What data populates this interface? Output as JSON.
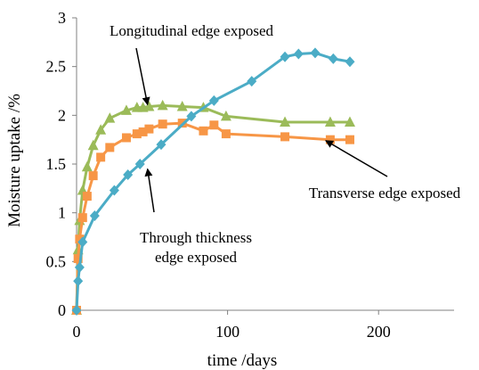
{
  "chart_data": {
    "type": "line",
    "xlabel": "time /days",
    "ylabel": "Moisture uptake /%",
    "xlim": [
      0,
      250
    ],
    "ylim": [
      0,
      3
    ],
    "xticks": [
      0,
      100,
      200
    ],
    "yticks": [
      0,
      0.5,
      1,
      1.5,
      2,
      2.5,
      3
    ],
    "xtick_labels": [
      "0",
      "100",
      "200"
    ],
    "ytick_labels": [
      "0",
      "0.5",
      "1",
      "1.5",
      "2",
      "2.5",
      "3"
    ],
    "grid": false,
    "legend": "none",
    "series": [
      {
        "key": "longitudinal",
        "color": "#9BBB59",
        "marker": "triangle",
        "x": [
          0,
          1,
          2,
          4,
          7,
          11,
          16,
          22,
          33,
          40,
          44,
          48,
          57,
          70,
          84,
          99,
          138,
          168,
          181
        ],
        "y": [
          0,
          0.62,
          0.92,
          1.23,
          1.47,
          1.69,
          1.85,
          1.97,
          2.05,
          2.08,
          2.08,
          2.09,
          2.1,
          2.09,
          2.08,
          1.99,
          1.93,
          1.93,
          1.93
        ]
      },
      {
        "key": "transverse",
        "color": "#F79646",
        "marker": "square",
        "x": [
          0,
          1,
          2,
          4,
          7,
          11,
          16,
          22,
          33,
          40,
          44,
          48,
          57,
          70,
          84,
          91,
          99,
          138,
          168,
          181
        ],
        "y": [
          0,
          0.53,
          0.73,
          0.95,
          1.17,
          1.38,
          1.57,
          1.67,
          1.77,
          1.81,
          1.83,
          1.86,
          1.91,
          1.92,
          1.84,
          1.9,
          1.81,
          1.78,
          1.75,
          1.75
        ]
      },
      {
        "key": "through_thickness",
        "color": "#4BACC6",
        "marker": "diamond",
        "x": [
          0,
          1,
          2,
          4,
          12,
          25,
          34,
          42,
          56,
          76,
          91,
          116,
          138,
          147,
          158,
          170,
          181
        ],
        "y": [
          0,
          0.3,
          0.44,
          0.7,
          0.97,
          1.23,
          1.39,
          1.5,
          1.7,
          1.99,
          2.15,
          2.35,
          2.6,
          2.63,
          2.64,
          2.58,
          2.55
        ]
      }
    ],
    "annotations": [
      {
        "key": "longitudinal",
        "lines": [
          "Longitudinal edge exposed"
        ],
        "arrow_to": [
          47,
          2.11
        ]
      },
      {
        "key": "transverse",
        "lines": [
          "Transverse edge exposed"
        ],
        "arrow_to": [
          165,
          1.74
        ]
      },
      {
        "key": "through_thickness",
        "lines": [
          "Through thickness",
          "edge exposed"
        ],
        "arrow_to": [
          47,
          1.45
        ]
      }
    ]
  }
}
